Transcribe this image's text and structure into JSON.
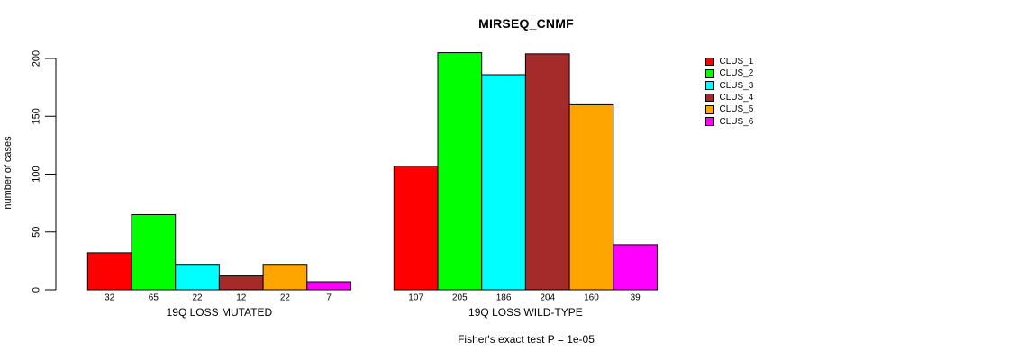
{
  "title": "MIRSEQ_CNMF",
  "footer_note": "Fisher's exact test P = 1e-05",
  "y_axis": {
    "label": "number of cases"
  },
  "legend": {
    "items": [
      {
        "label": "CLUS_1",
        "color": "#FF0000"
      },
      {
        "label": "CLUS_2",
        "color": "#00FF00"
      },
      {
        "label": "CLUS_3",
        "color": "#00FFFF"
      },
      {
        "label": "CLUS_4",
        "color": "#A52A2A"
      },
      {
        "label": "CLUS_5",
        "color": "#FFA500"
      },
      {
        "label": "CLUS_6",
        "color": "#FF00FF"
      }
    ]
  },
  "chart_data": {
    "type": "bar",
    "title": "MIRSEQ_CNMF",
    "xlabel": "",
    "ylabel": "number of cases",
    "ylim": [
      0,
      205
    ],
    "yticks": [
      0,
      50,
      100,
      150,
      200
    ],
    "grid": false,
    "legend_position": "right",
    "bar_value_labels": true,
    "categories": [
      "19Q LOSS MUTATED",
      "19Q LOSS WILD-TYPE"
    ],
    "series": [
      {
        "name": "CLUS_1",
        "color": "#FF0000",
        "values": [
          32,
          107
        ]
      },
      {
        "name": "CLUS_2",
        "color": "#00FF00",
        "values": [
          65,
          205
        ]
      },
      {
        "name": "CLUS_3",
        "color": "#00FFFF",
        "values": [
          22,
          186
        ]
      },
      {
        "name": "CLUS_4",
        "color": "#A52A2A",
        "values": [
          12,
          204
        ]
      },
      {
        "name": "CLUS_5",
        "color": "#FFA500",
        "values": [
          22,
          160
        ]
      },
      {
        "name": "CLUS_6",
        "color": "#FF00FF",
        "values": [
          7,
          39
        ]
      }
    ],
    "annotation": "Fisher's exact test P = 1e-05"
  }
}
